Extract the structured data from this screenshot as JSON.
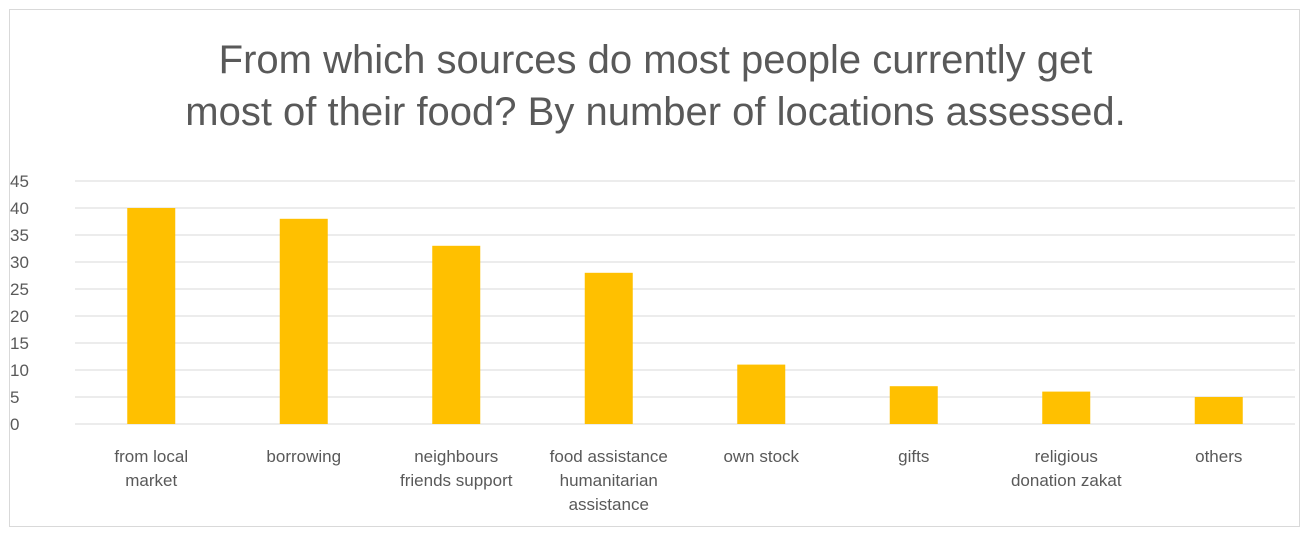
{
  "chart_data": {
    "type": "bar",
    "title_lines": [
      "From which sources do most people currently get",
      "most of their food? By number of locations assessed."
    ],
    "xlabel": "",
    "ylabel": "",
    "categories": [
      [
        "from local",
        "market"
      ],
      [
        "borrowing"
      ],
      [
        "neighbours",
        "friends support"
      ],
      [
        "food assistance",
        "humanitarian",
        "assistance"
      ],
      [
        "own stock"
      ],
      [
        "gifts"
      ],
      [
        "religious",
        "donation zakat"
      ],
      [
        "others"
      ]
    ],
    "values": [
      40,
      38,
      33,
      28,
      11,
      7,
      6,
      5
    ],
    "ylim": [
      0,
      45
    ],
    "yticks": [
      0,
      5,
      10,
      15,
      20,
      25,
      30,
      35,
      40,
      45
    ],
    "grid": true,
    "legend": "none",
    "bar_color": "#ffc000",
    "grid_color": "#d9d9d9",
    "text_color": "#595959"
  }
}
